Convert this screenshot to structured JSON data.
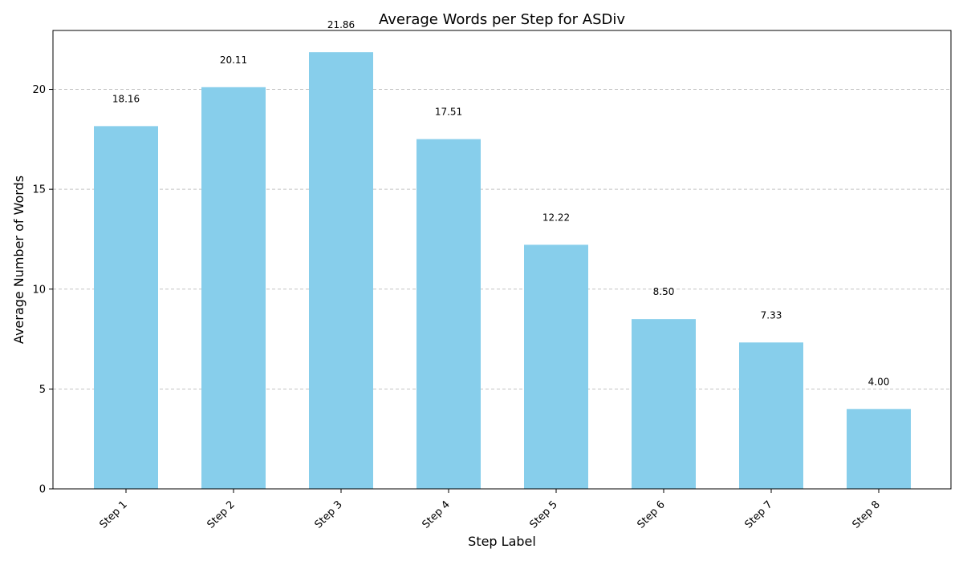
{
  "chart_data": {
    "type": "bar",
    "title": "Average Words per Step for ASDiv",
    "xlabel": "Step Label",
    "ylabel": "Average Number of Words",
    "categories": [
      "Step 1",
      "Step 2",
      "Step 3",
      "Step 4",
      "Step 5",
      "Step 6",
      "Step 7",
      "Step 8"
    ],
    "values": [
      18.16,
      20.11,
      21.86,
      17.51,
      12.22,
      8.5,
      7.33,
      4.0
    ],
    "data_labels": [
      "18.16",
      "20.11",
      "21.86",
      "17.51",
      "12.22",
      "8.50",
      "7.33",
      "4.00"
    ],
    "ylim": [
      0,
      22.95
    ],
    "yticks": [
      0,
      5,
      10,
      15,
      20
    ],
    "grid": "y-dashed",
    "bar_color": "#87CEEB"
  }
}
